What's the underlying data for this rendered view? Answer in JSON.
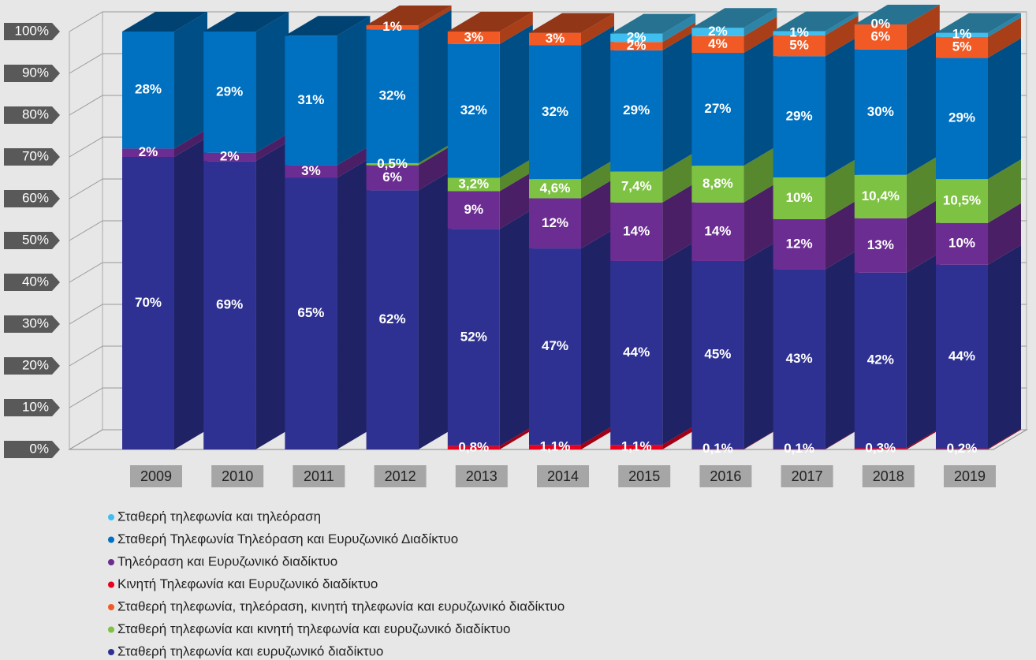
{
  "chart_data": {
    "type": "bar3d-stacked",
    "categories": [
      "2009",
      "2010",
      "2011",
      "2012",
      "2013",
      "2014",
      "2015",
      "2016",
      "2017",
      "2018",
      "2019"
    ],
    "ylim": [
      0,
      100
    ],
    "yticks": [
      {
        "value": 0,
        "label": "0%"
      },
      {
        "value": 10,
        "label": "10%"
      },
      {
        "value": 20,
        "label": "20%"
      },
      {
        "value": 30,
        "label": "30%"
      },
      {
        "value": 40,
        "label": "40%"
      },
      {
        "value": 50,
        "label": "50%"
      },
      {
        "value": 60,
        "label": "60%"
      },
      {
        "value": 70,
        "label": "70%"
      },
      {
        "value": 80,
        "label": "80%"
      },
      {
        "value": 90,
        "label": "90%"
      },
      {
        "value": 100,
        "label": "100%"
      }
    ],
    "grid": true,
    "series": [
      {
        "name": "Σταθερή τηλεφωνία και τηλεόραση",
        "color": "#3FBEF0",
        "values": [
          null,
          null,
          null,
          null,
          null,
          null,
          2,
          2,
          1,
          0,
          1
        ],
        "value_labels": [
          null,
          null,
          null,
          null,
          null,
          null,
          "2%",
          "2%",
          "1%",
          "0%",
          "1%"
        ]
      },
      {
        "name": "Σταθερή Τηλεφωνία Τηλεόραση και Ευρυζωνικό Διαδίκτυο",
        "color": "#0070C0",
        "values": [
          28,
          29,
          31,
          32,
          32,
          32,
          29,
          27,
          29,
          30,
          29
        ],
        "value_labels": [
          "28%",
          "29%",
          "31%",
          "32%",
          "32%",
          "32%",
          "29%",
          "27%",
          "29%",
          "30%",
          "29%"
        ]
      },
      {
        "name": "Τηλεόραση και Ευρυζωνικό διαδίκτυο",
        "color": "#6B2D91",
        "values": [
          2,
          2,
          3,
          6,
          9,
          12,
          14,
          14,
          12,
          13,
          10
        ],
        "value_labels": [
          "2%",
          "2%",
          "3%",
          "6%",
          "9%",
          "12%",
          "14%",
          "14%",
          "12%",
          "13%",
          "10%"
        ]
      },
      {
        "name": "Κινητή Τηλεφωνία και Ευρυζωνικό διαδίκτυο",
        "color": "#E8001C",
        "values": [
          null,
          null,
          null,
          null,
          0.8,
          1.1,
          1.1,
          0.1,
          0.1,
          0.3,
          0.2
        ],
        "value_labels": [
          null,
          null,
          null,
          null,
          "0,8%",
          "1,1%",
          "1,1%",
          "0,1%",
          "0,1%",
          "0,3%",
          "0,2%"
        ]
      },
      {
        "name": "Σταθερή τηλεφωνία, τηλεόραση, κινητή τηλεφωνία και ευρυζωνικό διαδίκτυο",
        "color": "#F15A24",
        "values": [
          null,
          null,
          null,
          1,
          3,
          3,
          2,
          4,
          5,
          6,
          5
        ],
        "value_labels": [
          null,
          null,
          null,
          "1%",
          "3%",
          "3%",
          "2%",
          "4%",
          "5%",
          "6%",
          "5%"
        ]
      },
      {
        "name": "Σταθερή τηλεφωνία και κινητή τηλεφωνία και ευρυζωνικό διαδίκτυο",
        "color": "#7DC242",
        "values": [
          null,
          null,
          null,
          0.5,
          3.2,
          4.6,
          7.4,
          8.8,
          10,
          10.4,
          10.5
        ],
        "value_labels": [
          null,
          null,
          null,
          "0,5%",
          "3,2%",
          "4,6%",
          "7,4%",
          "8,8%",
          "10%",
          "10,4%",
          "10,5%"
        ]
      },
      {
        "name": "Σταθερή τηλεφωνία και ευρυζωνικό διαδίκτυο",
        "color": "#2E3192",
        "values": [
          70,
          69,
          65,
          62,
          52,
          47,
          44,
          45,
          43,
          42,
          44
        ],
        "value_labels": [
          "70%",
          "69%",
          "65%",
          "62%",
          "52%",
          "47%",
          "44%",
          "45%",
          "43%",
          "42%",
          "44%"
        ]
      }
    ]
  }
}
